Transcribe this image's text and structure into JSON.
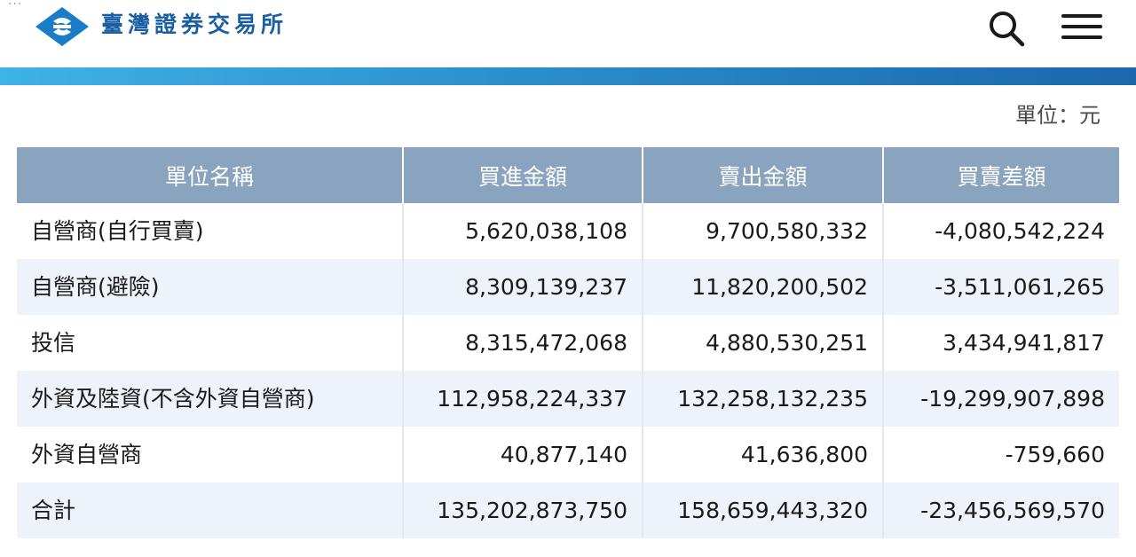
{
  "header": {
    "dots": "···",
    "brand": "臺灣證券交易所",
    "search_icon": "search-icon",
    "menu_icon": "menu-icon",
    "brand_color": "#1b5fa3"
  },
  "unit_label": "單位：元",
  "table": {
    "headers": [
      "單位名稱",
      "買進金額",
      "賣出金額",
      "買賣差額"
    ],
    "header_bg": "#8aa4c0",
    "stripe_bg": "#eef3f9",
    "rows": [
      [
        "自營商(自行買賣)",
        "5,620,038,108",
        "9,700,580,332",
        "-4,080,542,224"
      ],
      [
        "自營商(避險)",
        "8,309,139,237",
        "11,820,200,502",
        "-3,511,061,265"
      ],
      [
        "投信",
        "8,315,472,068",
        "4,880,530,251",
        "3,434,941,817"
      ],
      [
        "外資及陸資(不含外資自營商)",
        "112,958,224,337",
        "132,258,132,235",
        "-19,299,907,898"
      ],
      [
        "外資自營商",
        "40,877,140",
        "41,636,800",
        "-759,660"
      ],
      [
        "合計",
        "135,202,873,750",
        "158,659,443,320",
        "-23,456,569,570"
      ]
    ]
  }
}
